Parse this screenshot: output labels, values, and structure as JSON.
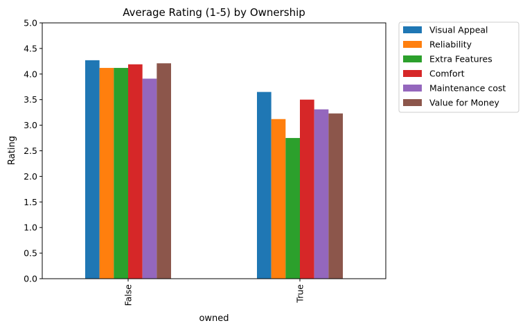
{
  "chart_data": {
    "type": "bar",
    "title": "Average Rating (1-5) by Ownership",
    "xlabel": "owned",
    "ylabel": "Rating",
    "categories": [
      "False",
      "True"
    ],
    "ylim": [
      0,
      5
    ],
    "yticks": [
      "0.0",
      "0.5",
      "1.0",
      "1.5",
      "2.0",
      "2.5",
      "3.0",
      "3.5",
      "4.0",
      "4.5",
      "5.0"
    ],
    "grid": false,
    "legend_position": "outside-top-right",
    "series": [
      {
        "name": "Visual Appeal",
        "color": "#1f77b4",
        "values": [
          4.27,
          3.65
        ]
      },
      {
        "name": "Reliability",
        "color": "#ff7f0e",
        "values": [
          4.12,
          3.12
        ]
      },
      {
        "name": "Extra Features",
        "color": "#2ca02c",
        "values": [
          4.12,
          2.75
        ]
      },
      {
        "name": "Comfort",
        "color": "#d62728",
        "values": [
          4.19,
          3.5
        ]
      },
      {
        "name": "Maintenance cost",
        "color": "#9467bd",
        "values": [
          3.91,
          3.31
        ]
      },
      {
        "name": "Value for Money",
        "color": "#8c564b",
        "values": [
          4.21,
          3.23
        ]
      }
    ]
  }
}
